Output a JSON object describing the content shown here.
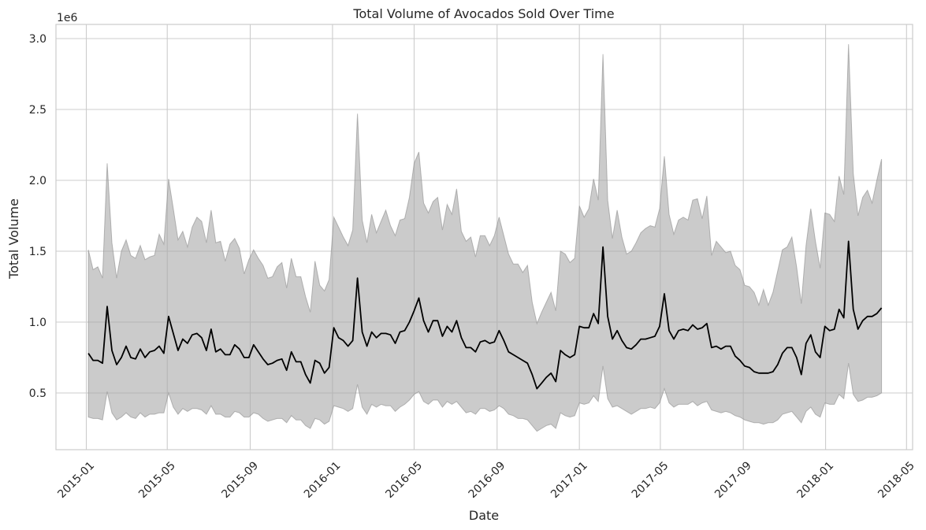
{
  "chart_data": {
    "type": "line",
    "title": "Total Volume of Avocados Sold Over Time",
    "xlabel": "Date",
    "ylabel": "Total Volume",
    "y_offset_label": "1e6",
    "y_scale_factor": 1000000,
    "grid": true,
    "legend": "none",
    "band": "light-gray filled region around mean line",
    "x_range": [
      "2014-11-17",
      "2018-05-10"
    ],
    "ylim": [
      100000,
      3100000
    ],
    "x_ticks": [
      {
        "value": "2015-01-01",
        "label": "2015-01"
      },
      {
        "value": "2015-05-01",
        "label": "2015-05"
      },
      {
        "value": "2015-09-01",
        "label": "2015-09"
      },
      {
        "value": "2016-01-01",
        "label": "2016-01"
      },
      {
        "value": "2016-05-01",
        "label": "2016-05"
      },
      {
        "value": "2016-09-01",
        "label": "2016-09"
      },
      {
        "value": "2017-01-01",
        "label": "2017-01"
      },
      {
        "value": "2017-05-01",
        "label": "2017-05"
      },
      {
        "value": "2017-09-01",
        "label": "2017-09"
      },
      {
        "value": "2018-01-01",
        "label": "2018-01"
      },
      {
        "value": "2018-05-01",
        "label": "2018-05"
      }
    ],
    "y_ticks": [
      {
        "value": 500000,
        "label": "0.5"
      },
      {
        "value": 1000000,
        "label": "1.0"
      },
      {
        "value": 1500000,
        "label": "1.5"
      },
      {
        "value": 2000000,
        "label": "2.0"
      },
      {
        "value": 2500000,
        "label": "2.5"
      },
      {
        "value": 3000000,
        "label": "3.0"
      }
    ],
    "series": [
      {
        "start_date": "2015-01-04",
        "step_days": 7,
        "mean": [
          0.78,
          0.73,
          0.73,
          0.71,
          1.11,
          0.8,
          0.7,
          0.75,
          0.83,
          0.75,
          0.74,
          0.81,
          0.75,
          0.79,
          0.8,
          0.83,
          0.78,
          1.04,
          0.92,
          0.8,
          0.88,
          0.85,
          0.91,
          0.92,
          0.89,
          0.8,
          0.95,
          0.79,
          0.81,
          0.77,
          0.77,
          0.84,
          0.81,
          0.75,
          0.75,
          0.84,
          0.79,
          0.74,
          0.7,
          0.71,
          0.73,
          0.74,
          0.66,
          0.79,
          0.72,
          0.72,
          0.63,
          0.57,
          0.73,
          0.71,
          0.64,
          0.68,
          0.96,
          0.89,
          0.87,
          0.83,
          0.87,
          1.31,
          0.93,
          0.83,
          0.93,
          0.89,
          0.92,
          0.92,
          0.91,
          0.85,
          0.93,
          0.94,
          1.0,
          1.08,
          1.17,
          1.01,
          0.93,
          1.01,
          1.01,
          0.9,
          0.97,
          0.93,
          1.01,
          0.89,
          0.82,
          0.82,
          0.79,
          0.86,
          0.87,
          0.85,
          0.86,
          0.94,
          0.87,
          0.79,
          0.77,
          0.75,
          0.73,
          0.71,
          0.63,
          0.53,
          0.57,
          0.61,
          0.64,
          0.58,
          0.8,
          0.77,
          0.75,
          0.77,
          0.97,
          0.96,
          0.96,
          1.06,
          0.99,
          1.53,
          1.04,
          0.88,
          0.94,
          0.87,
          0.82,
          0.81,
          0.84,
          0.88,
          0.88,
          0.89,
          0.9,
          0.97,
          1.2,
          0.94,
          0.88,
          0.94,
          0.95,
          0.94,
          0.98,
          0.95,
          0.96,
          0.99,
          0.82,
          0.83,
          0.81,
          0.83,
          0.83,
          0.76,
          0.73,
          0.69,
          0.68,
          0.65,
          0.64,
          0.64,
          0.64,
          0.65,
          0.7,
          0.78,
          0.82,
          0.82,
          0.75,
          0.63,
          0.85,
          0.91,
          0.79,
          0.75,
          0.97,
          0.94,
          0.95,
          1.09,
          1.03,
          1.57,
          1.09,
          0.95,
          1.01,
          1.04,
          1.04,
          1.06,
          1.1
        ],
        "upper": [
          1.51,
          1.37,
          1.39,
          1.31,
          2.12,
          1.56,
          1.31,
          1.5,
          1.58,
          1.47,
          1.45,
          1.54,
          1.44,
          1.46,
          1.47,
          1.62,
          1.55,
          2.01,
          1.8,
          1.58,
          1.64,
          1.53,
          1.67,
          1.74,
          1.71,
          1.56,
          1.79,
          1.56,
          1.57,
          1.43,
          1.55,
          1.59,
          1.52,
          1.34,
          1.44,
          1.51,
          1.45,
          1.4,
          1.31,
          1.32,
          1.39,
          1.42,
          1.24,
          1.45,
          1.32,
          1.32,
          1.18,
          1.07,
          1.43,
          1.26,
          1.22,
          1.3,
          1.74,
          1.67,
          1.6,
          1.54,
          1.65,
          2.47,
          1.72,
          1.56,
          1.76,
          1.63,
          1.71,
          1.79,
          1.68,
          1.61,
          1.72,
          1.73,
          1.88,
          2.12,
          2.2,
          1.84,
          1.77,
          1.85,
          1.88,
          1.65,
          1.83,
          1.76,
          1.94,
          1.64,
          1.57,
          1.6,
          1.46,
          1.61,
          1.61,
          1.54,
          1.61,
          1.74,
          1.61,
          1.48,
          1.41,
          1.41,
          1.35,
          1.4,
          1.14,
          0.99,
          1.07,
          1.14,
          1.21,
          1.08,
          1.5,
          1.48,
          1.42,
          1.45,
          1.82,
          1.74,
          1.8,
          2.01,
          1.86,
          2.89,
          1.86,
          1.59,
          1.79,
          1.6,
          1.48,
          1.5,
          1.56,
          1.63,
          1.66,
          1.68,
          1.67,
          1.8,
          2.17,
          1.76,
          1.62,
          1.72,
          1.74,
          1.72,
          1.86,
          1.87,
          1.73,
          1.89,
          1.47,
          1.57,
          1.53,
          1.49,
          1.5,
          1.4,
          1.37,
          1.26,
          1.25,
          1.21,
          1.12,
          1.23,
          1.12,
          1.21,
          1.36,
          1.51,
          1.53,
          1.6,
          1.39,
          1.13,
          1.54,
          1.8,
          1.57,
          1.38,
          1.77,
          1.76,
          1.71,
          2.03,
          1.9,
          2.96,
          2.05,
          1.75,
          1.88,
          1.93,
          1.84,
          2.0,
          2.15
        ],
        "lower": [
          0.33,
          0.32,
          0.32,
          0.31,
          0.51,
          0.36,
          0.31,
          0.33,
          0.36,
          0.33,
          0.32,
          0.36,
          0.33,
          0.35,
          0.35,
          0.36,
          0.36,
          0.5,
          0.4,
          0.35,
          0.39,
          0.37,
          0.39,
          0.39,
          0.38,
          0.35,
          0.41,
          0.35,
          0.35,
          0.33,
          0.33,
          0.37,
          0.36,
          0.33,
          0.33,
          0.36,
          0.35,
          0.32,
          0.3,
          0.31,
          0.32,
          0.32,
          0.29,
          0.34,
          0.31,
          0.31,
          0.27,
          0.25,
          0.32,
          0.31,
          0.28,
          0.3,
          0.41,
          0.4,
          0.39,
          0.37,
          0.39,
          0.56,
          0.4,
          0.35,
          0.42,
          0.4,
          0.42,
          0.41,
          0.41,
          0.37,
          0.4,
          0.42,
          0.45,
          0.49,
          0.51,
          0.44,
          0.42,
          0.45,
          0.45,
          0.4,
          0.44,
          0.42,
          0.44,
          0.4,
          0.36,
          0.37,
          0.35,
          0.39,
          0.39,
          0.37,
          0.38,
          0.41,
          0.39,
          0.35,
          0.34,
          0.32,
          0.32,
          0.31,
          0.27,
          0.23,
          0.25,
          0.27,
          0.28,
          0.25,
          0.36,
          0.34,
          0.33,
          0.34,
          0.43,
          0.42,
          0.43,
          0.48,
          0.44,
          0.69,
          0.46,
          0.4,
          0.41,
          0.39,
          0.37,
          0.35,
          0.37,
          0.39,
          0.39,
          0.4,
          0.39,
          0.43,
          0.53,
          0.43,
          0.4,
          0.42,
          0.42,
          0.42,
          0.44,
          0.41,
          0.43,
          0.44,
          0.38,
          0.37,
          0.36,
          0.37,
          0.36,
          0.34,
          0.33,
          0.31,
          0.3,
          0.29,
          0.29,
          0.28,
          0.29,
          0.29,
          0.31,
          0.35,
          0.36,
          0.37,
          0.33,
          0.29,
          0.37,
          0.4,
          0.35,
          0.33,
          0.43,
          0.42,
          0.42,
          0.49,
          0.46,
          0.71,
          0.49,
          0.44,
          0.45,
          0.47,
          0.47,
          0.48,
          0.5
        ]
      }
    ]
  }
}
